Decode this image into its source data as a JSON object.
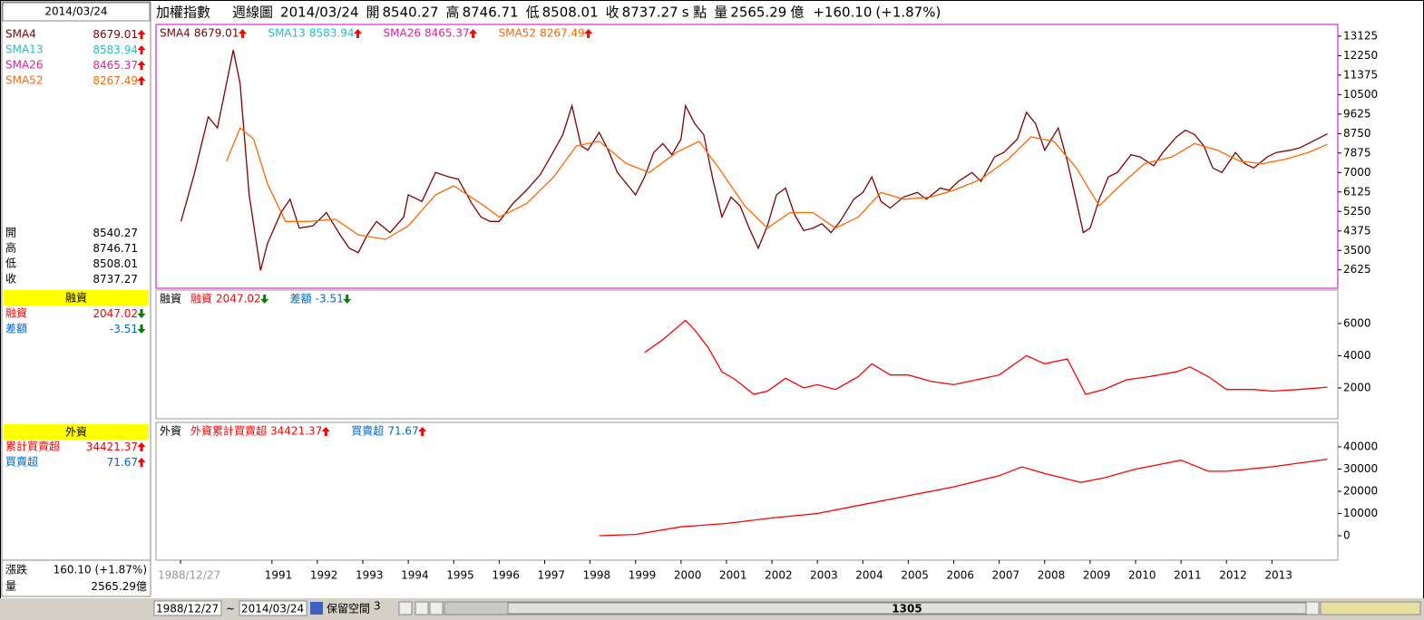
{
  "header": {
    "index": "加權指數",
    "period": "週線圖",
    "date": "2014/03/24",
    "open_label": "開",
    "open": 8540.27,
    "high_label": "高",
    "high": 8746.71,
    "low_label": "低",
    "low": 8508.01,
    "close_label": "收",
    "close": 8737.27,
    "close_suffix": "s 點",
    "volume_label": "量",
    "volume": 2565.29,
    "unit": "億",
    "change": "+160.10",
    "change_pct": "(+1.87%)"
  },
  "sidebar": {
    "foreign_rows": [
      "累計買賣超",
      "買賣超"
    ],
    "change_label": "漲跌",
    "change_text": "160.10 (+1.87%)"
  },
  "toolbar": {
    "start": "1988/12/27",
    "sep": "~",
    "end": "2014/03/24",
    "reserve_label": "保留空間",
    "reserve": 3,
    "position": 1305
  },
  "chart_data": [
    {
      "type": "line",
      "xlim": [
        1988.45,
        2014.45
      ],
      "ylim": [
        1800,
        13650
      ],
      "yticks": [
        2625,
        3500,
        4375,
        5250,
        6125,
        7000,
        7875,
        8750,
        9625,
        10500,
        11375,
        12250,
        13125
      ],
      "legend": [
        {
          "name": "SMA4",
          "value": 8679.01,
          "color": "#800000",
          "dir": "up"
        },
        {
          "name": "SMA13",
          "value": 8583.94,
          "color": "#22c0c0",
          "dir": "up"
        },
        {
          "name": "SMA26",
          "value": 8465.37,
          "color": "#e020a0",
          "dir": "up"
        },
        {
          "name": "SMA52",
          "value": 8267.49,
          "color": "#ff6600",
          "dir": "up"
        }
      ],
      "series": [
        {
          "color": "#800000",
          "x": [
            1989.0,
            1989.3,
            1989.6,
            1989.8,
            1990.0,
            1990.15,
            1990.3,
            1990.5,
            1990.75,
            1990.9,
            1991.2,
            1991.4,
            1991.6,
            1991.9,
            1992.2,
            1992.5,
            1992.7,
            1992.9,
            1993.1,
            1993.3,
            1993.6,
            1993.9,
            1994.0,
            1994.3,
            1994.6,
            1994.9,
            1995.1,
            1995.4,
            1995.6,
            1995.8,
            1996.0,
            1996.3,
            1996.6,
            1996.9,
            1997.1,
            1997.4,
            1997.6,
            1997.8,
            1997.95,
            1998.2,
            1998.4,
            1998.6,
            1998.8,
            1999.0,
            1999.2,
            1999.4,
            1999.6,
            1999.8,
            2000.0,
            2000.1,
            2000.3,
            2000.5,
            2000.7,
            2000.9,
            2001.1,
            2001.3,
            2001.5,
            2001.7,
            2001.9,
            2002.1,
            2002.3,
            2002.5,
            2002.7,
            2002.9,
            2003.1,
            2003.3,
            2003.5,
            2003.8,
            2004.0,
            2004.2,
            2004.4,
            2004.6,
            2004.9,
            2005.2,
            2005.4,
            2005.7,
            2005.9,
            2006.1,
            2006.4,
            2006.6,
            2006.9,
            2007.1,
            2007.4,
            2007.6,
            2007.8,
            2008.0,
            2008.3,
            2008.5,
            2008.7,
            2008.85,
            2009.0,
            2009.2,
            2009.4,
            2009.6,
            2009.9,
            2010.1,
            2010.4,
            2010.6,
            2010.9,
            2011.1,
            2011.3,
            2011.5,
            2011.7,
            2011.9,
            2012.2,
            2012.4,
            2012.6,
            2012.9,
            2013.1,
            2013.4,
            2013.6,
            2013.9,
            2014.22
          ],
          "values": [
            4800,
            7000,
            9500,
            9000,
            11000,
            12500,
            11000,
            6000,
            2600,
            3800,
            5200,
            5800,
            4500,
            4600,
            5200,
            4200,
            3600,
            3400,
            4200,
            4800,
            4300,
            5000,
            6000,
            5700,
            7000,
            6800,
            6700,
            5600,
            5000,
            4800,
            4800,
            5600,
            6200,
            6900,
            7600,
            8700,
            10000,
            8200,
            8000,
            8800,
            8000,
            7000,
            6500,
            6000,
            6800,
            7900,
            8300,
            7800,
            8500,
            10000,
            9200,
            8700,
            6700,
            5000,
            5900,
            5500,
            4500,
            3600,
            4600,
            6000,
            6300,
            5100,
            4400,
            4500,
            4700,
            4300,
            4800,
            5800,
            6100,
            6800,
            5700,
            5400,
            5900,
            6100,
            5800,
            6300,
            6200,
            6600,
            7000,
            6600,
            7700,
            7900,
            8500,
            9700,
            9200,
            8000,
            9000,
            7500,
            5700,
            4300,
            4500,
            5800,
            6800,
            7000,
            7800,
            7700,
            7300,
            7900,
            8600,
            8900,
            8700,
            8200,
            7200,
            7000,
            7900,
            7400,
            7200,
            7700,
            7900,
            8000,
            8100,
            8400,
            8737.27
          ]
        },
        {
          "color": "#ff6600",
          "x": [
            1990.0,
            1990.3,
            1990.6,
            1990.9,
            1991.3,
            1991.8,
            1992.4,
            1992.9,
            1993.5,
            1994.0,
            1994.6,
            1995.0,
            1995.6,
            1996.0,
            1996.6,
            1997.2,
            1997.7,
            1998.2,
            1998.8,
            1999.3,
            1999.9,
            2000.4,
            2000.9,
            2001.4,
            2001.9,
            2002.4,
            2002.9,
            2003.4,
            2003.9,
            2004.4,
            2004.9,
            2005.5,
            2006.0,
            2006.6,
            2007.2,
            2007.7,
            2008.2,
            2008.7,
            2009.2,
            2009.7,
            2010.2,
            2010.8,
            2011.3,
            2011.8,
            2012.3,
            2012.8,
            2013.3,
            2013.8,
            2014.22
          ],
          "values": [
            7500,
            9000,
            8500,
            6500,
            4800,
            4800,
            4900,
            4200,
            4000,
            4600,
            6000,
            6400,
            5600,
            5000,
            5600,
            6800,
            8200,
            8400,
            7400,
            7000,
            7900,
            8400,
            7000,
            5500,
            4500,
            5200,
            5200,
            4500,
            5000,
            6100,
            5800,
            5900,
            6200,
            6700,
            7600,
            8600,
            8400,
            7200,
            5500,
            6500,
            7400,
            7700,
            8300,
            8000,
            7500,
            7400,
            7600,
            7900,
            8267.49
          ]
        }
      ]
    },
    {
      "type": "line",
      "xlim": [
        1988.45,
        2014.45
      ],
      "ylim": [
        80,
        8080
      ],
      "yticks": [
        2000,
        4000,
        6000
      ],
      "title": "融資",
      "legend": [
        {
          "name": "融資",
          "value": 2047.02,
          "color": "#ff0000",
          "dir": "down"
        },
        {
          "name": "差額",
          "value": -3.51,
          "color": "#0066cc",
          "dir": "down"
        }
      ],
      "series": [
        {
          "color": "#ff0000",
          "x": [
            1999.2,
            1999.6,
            2000.1,
            2000.3,
            2000.6,
            2000.9,
            2001.2,
            2001.6,
            2001.9,
            2002.3,
            2002.7,
            2003.0,
            2003.4,
            2003.9,
            2004.2,
            2004.6,
            2005.0,
            2005.5,
            2006.0,
            2006.5,
            2007.0,
            2007.6,
            2008.0,
            2008.5,
            2008.9,
            2009.3,
            2009.8,
            2010.3,
            2010.9,
            2011.2,
            2011.6,
            2012.0,
            2012.6,
            2013.0,
            2013.6,
            2014.22
          ],
          "values": [
            4200,
            5000,
            6200,
            5600,
            4500,
            3000,
            2500,
            1600,
            1800,
            2600,
            2000,
            2200,
            1900,
            2700,
            3500,
            2800,
            2800,
            2400,
            2200,
            2500,
            2800,
            4000,
            3500,
            3800,
            1600,
            1900,
            2500,
            2700,
            3000,
            3300,
            2700,
            1900,
            1900,
            1800,
            1900,
            2047.02
          ]
        }
      ]
    },
    {
      "type": "line",
      "xlim": [
        1988.45,
        2014.45
      ],
      "ylim": [
        -11000,
        51000
      ],
      "yticks": [
        0,
        10000,
        20000,
        30000,
        40000
      ],
      "title": "外資",
      "legend": [
        {
          "name": "外資累計買賣超",
          "value": 34421.37,
          "color": "#ff0000",
          "dir": "up"
        },
        {
          "name": "買賣超",
          "value": 71.67,
          "color": "#0066cc",
          "dir": "up"
        }
      ],
      "xticks": [
        {
          "value": 1988.99,
          "label": "1988/12/27"
        },
        1991,
        1992,
        1993,
        1994,
        1995,
        1996,
        1997,
        1998,
        1999,
        2000,
        2001,
        2002,
        2003,
        2004,
        2005,
        2006,
        2007,
        2008,
        2009,
        2010,
        2011,
        2012,
        2013
      ],
      "series": [
        {
          "color": "#ff0000",
          "x": [
            1998.2,
            1999.0,
            2000.0,
            2001.0,
            2002.0,
            2003.0,
            2004.0,
            2005.0,
            2006.0,
            2007.0,
            2007.5,
            2008.0,
            2008.8,
            2009.3,
            2010.0,
            2011.0,
            2011.6,
            2012.0,
            2013.0,
            2014.22
          ],
          "values": [
            0,
            600,
            4000,
            5500,
            8000,
            10000,
            14000,
            18000,
            22000,
            27000,
            31000,
            28000,
            24000,
            26000,
            30000,
            34000,
            29000,
            29000,
            31000,
            34421.37
          ]
        }
      ]
    }
  ]
}
